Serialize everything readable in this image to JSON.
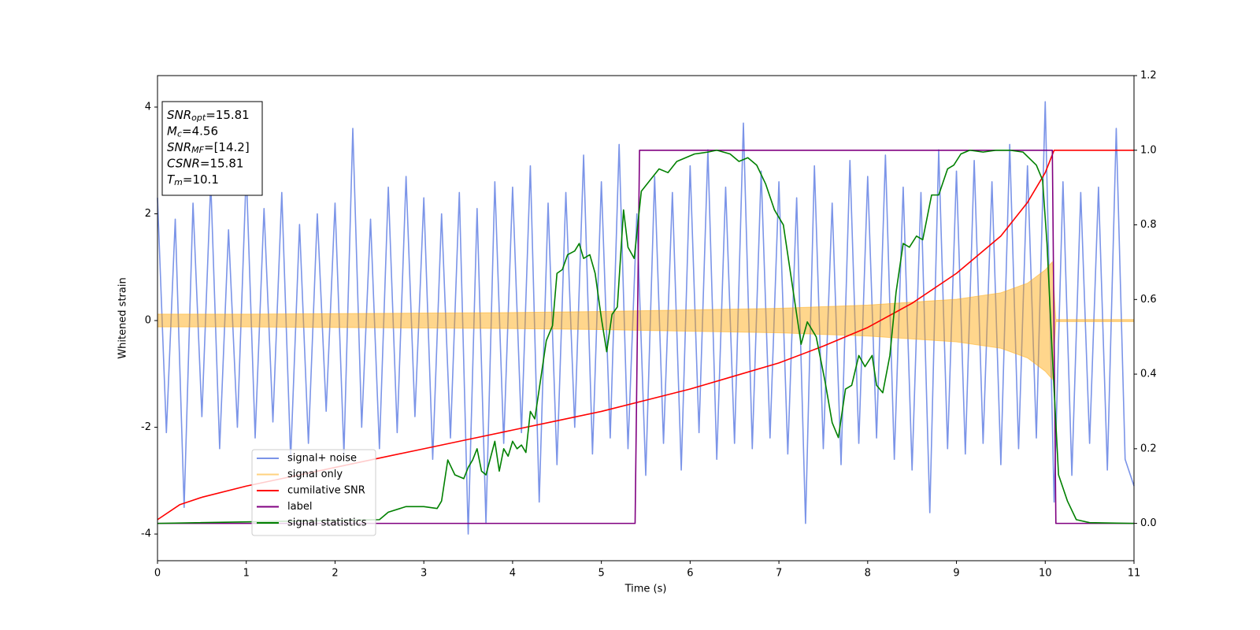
{
  "chart_data": {
    "type": "line",
    "xlabel": "Time (s)",
    "ylabel": "Whitened strain",
    "xlim": [
      0,
      11
    ],
    "ylim": [
      -4.5,
      4.59
    ],
    "y2lim": [
      -0.1,
      1.2
    ],
    "xticks": [
      0,
      1,
      2,
      3,
      4,
      5,
      6,
      7,
      8,
      9,
      10,
      11
    ],
    "yticks": [
      -4,
      -2,
      0,
      2,
      4
    ],
    "y2ticks": [
      {
        "value": 0,
        "label": "0.0"
      },
      {
        "value": 0.2,
        "label": "0.2"
      },
      {
        "value": 0.4,
        "label": "0.4"
      },
      {
        "value": 0.6,
        "label": "0.6"
      },
      {
        "value": 0.8,
        "label": "0.8"
      },
      {
        "value": 1,
        "label": "1.0"
      },
      {
        "value": 1.2,
        "label": "1.2"
      }
    ],
    "legend": "lower left",
    "annotations": [
      {
        "symbol": "SNR",
        "subscript": "opt",
        "text": "=15.81"
      },
      {
        "symbol": "M",
        "subscript": "c",
        "text": "=4.56"
      },
      {
        "symbol": "SNR",
        "subscript": "MF",
        "text": "=[14.2]"
      },
      {
        "symbol": "CSNR",
        "text": "=15.81"
      },
      {
        "symbol": "T",
        "subscript": "m",
        "text": "=10.1"
      }
    ],
    "series": [
      {
        "name": "signal+ noise",
        "color": "#7b94e8",
        "x": [
          0,
          0.1,
          0.2,
          0.3,
          0.4,
          0.5,
          0.6,
          0.7,
          0.8,
          0.9,
          1,
          1.1,
          1.2,
          1.3,
          1.4,
          1.5,
          1.6,
          1.7,
          1.8,
          1.9,
          2,
          2.1,
          2.2,
          2.3,
          2.4,
          2.5,
          2.6,
          2.7,
          2.8,
          2.9,
          3,
          3.1,
          3.2,
          3.3,
          3.4,
          3.5,
          3.6,
          3.7,
          3.8,
          3.9,
          4,
          4.1,
          4.2,
          4.3,
          4.4,
          4.5,
          4.6,
          4.7,
          4.8,
          4.9,
          5,
          5.1,
          5.2,
          5.3,
          5.4,
          5.5,
          5.6,
          5.7,
          5.8,
          5.9,
          6,
          6.1,
          6.2,
          6.3,
          6.4,
          6.5,
          6.6,
          6.7,
          6.8,
          6.9,
          7,
          7.1,
          7.2,
          7.3,
          7.4,
          7.5,
          7.6,
          7.7,
          7.8,
          7.9,
          8,
          8.1,
          8.2,
          8.3,
          8.4,
          8.5,
          8.6,
          8.7,
          8.8,
          8.9,
          9,
          9.1,
          9.2,
          9.3,
          9.4,
          9.5,
          9.6,
          9.7,
          9.8,
          9.9,
          10,
          10.1,
          10.2,
          10.3,
          10.4,
          10.5,
          10.6,
          10.7,
          10.8,
          10.9,
          11
        ],
        "values": [
          2.3,
          -2.1,
          1.9,
          -3.5,
          2.2,
          -1.8,
          2.6,
          -2.4,
          1.7,
          -2.0,
          2.8,
          -2.2,
          2.1,
          -1.9,
          2.4,
          -2.6,
          1.8,
          -2.3,
          2.0,
          -1.7,
          2.2,
          -2.5,
          3.6,
          -2.0,
          1.9,
          -2.4,
          2.5,
          -2.1,
          2.7,
          -1.8,
          2.3,
          -2.6,
          2.0,
          -2.2,
          2.4,
          -4.0,
          2.1,
          -3.8,
          2.6,
          -2.3,
          2.5,
          -2.1,
          2.9,
          -3.4,
          2.2,
          -2.7,
          2.4,
          -2.0,
          3.1,
          -2.5,
          2.6,
          -2.2,
          3.3,
          -2.4,
          2.0,
          -2.9,
          2.7,
          -2.3,
          2.4,
          -2.8,
          2.9,
          -2.1,
          3.2,
          -2.6,
          2.5,
          -2.3,
          3.7,
          -2.4,
          2.8,
          -2.2,
          2.6,
          -2.5,
          2.3,
          -3.8,
          2.9,
          -2.4,
          2.2,
          -2.7,
          3.0,
          -2.3,
          2.7,
          -2.2,
          3.1,
          -2.6,
          2.5,
          -2.8,
          2.4,
          -3.6,
          3.2,
          -2.4,
          2.8,
          -2.5,
          3.0,
          -2.3,
          2.6,
          -2.7,
          3.3,
          -2.4,
          2.9,
          -2.2,
          4.1,
          -3.4,
          2.6,
          -2.9,
          2.4,
          -2.3,
          2.5,
          -2.8,
          3.6,
          -2.6,
          -3.1
        ]
      },
      {
        "name": "signal only",
        "color": "#ffa500",
        "x": [
          0,
          1,
          2,
          3,
          4,
          5,
          6,
          7,
          8,
          9,
          9.5,
          9.8,
          10,
          10.08,
          10.12,
          11
        ],
        "values": [
          0.12,
          0.12,
          0.13,
          0.14,
          0.15,
          0.17,
          0.2,
          0.23,
          0.29,
          0.4,
          0.52,
          0.7,
          0.95,
          1.1,
          0.02,
          0.02
        ],
        "lower": [
          -0.12,
          -0.12,
          -0.13,
          -0.14,
          -0.15,
          -0.17,
          -0.2,
          -0.23,
          -0.29,
          -0.4,
          -0.52,
          -0.7,
          -0.95,
          -1.1,
          -0.02,
          -0.02
        ]
      },
      {
        "name": "cumilative SNR",
        "color": "#ff0000",
        "axis": "y2",
        "x": [
          0,
          0.25,
          0.5,
          1,
          1.5,
          2,
          2.5,
          3,
          3.5,
          4,
          4.5,
          5,
          5.5,
          6,
          6.5,
          7,
          7.5,
          8,
          8.5,
          9,
          9.5,
          9.8,
          10,
          10.1,
          10.5,
          11
        ],
        "values": [
          0.01,
          0.05,
          0.07,
          0.1,
          0.125,
          0.15,
          0.175,
          0.2,
          0.225,
          0.25,
          0.275,
          0.3,
          0.33,
          0.36,
          0.395,
          0.43,
          0.475,
          0.525,
          0.59,
          0.67,
          0.77,
          0.86,
          0.94,
          1,
          1,
          1
        ]
      },
      {
        "name": "label",
        "color": "#800080",
        "axis": "y2",
        "x": [
          0,
          5.38,
          5.43,
          10.08,
          10.12,
          11
        ],
        "values": [
          0,
          0,
          1,
          1,
          0,
          0
        ]
      },
      {
        "name": "signal statistics",
        "color": "#008000",
        "axis": "y2",
        "x": [
          0,
          2.5,
          2.6,
          2.8,
          3.0,
          3.15,
          3.2,
          3.27,
          3.35,
          3.45,
          3.5,
          3.55,
          3.6,
          3.65,
          3.7,
          3.8,
          3.85,
          3.9,
          3.95,
          4.0,
          4.05,
          4.1,
          4.15,
          4.2,
          4.25,
          4.3,
          4.38,
          4.45,
          4.5,
          4.56,
          4.62,
          4.7,
          4.75,
          4.8,
          4.87,
          4.93,
          5.0,
          5.06,
          5.12,
          5.18,
          5.25,
          5.3,
          5.37,
          5.45,
          5.55,
          5.65,
          5.75,
          5.85,
          5.95,
          6.05,
          6.2,
          6.3,
          6.45,
          6.55,
          6.65,
          6.75,
          6.85,
          6.95,
          7.05,
          7.15,
          7.25,
          7.32,
          7.42,
          7.52,
          7.6,
          7.67,
          7.75,
          7.82,
          7.9,
          7.97,
          8.05,
          8.1,
          8.17,
          8.25,
          8.32,
          8.4,
          8.47,
          8.55,
          8.62,
          8.72,
          8.8,
          8.9,
          8.97,
          9.05,
          9.15,
          9.3,
          9.45,
          9.6,
          9.75,
          9.9,
          9.97,
          10.02,
          10.08,
          10.15,
          10.25,
          10.35,
          10.5,
          11
        ],
        "values": [
          0,
          0.01,
          0.03,
          0.045,
          0.045,
          0.04,
          0.06,
          0.17,
          0.13,
          0.12,
          0.15,
          0.17,
          0.2,
          0.14,
          0.13,
          0.22,
          0.14,
          0.2,
          0.18,
          0.22,
          0.2,
          0.21,
          0.19,
          0.3,
          0.28,
          0.36,
          0.49,
          0.53,
          0.67,
          0.68,
          0.72,
          0.73,
          0.75,
          0.71,
          0.72,
          0.67,
          0.55,
          0.46,
          0.56,
          0.58,
          0.84,
          0.74,
          0.71,
          0.89,
          0.92,
          0.95,
          0.94,
          0.97,
          0.98,
          0.99,
          0.995,
          1,
          0.99,
          0.97,
          0.98,
          0.96,
          0.91,
          0.84,
          0.8,
          0.64,
          0.48,
          0.54,
          0.5,
          0.38,
          0.27,
          0.23,
          0.36,
          0.37,
          0.45,
          0.42,
          0.45,
          0.37,
          0.35,
          0.45,
          0.62,
          0.75,
          0.74,
          0.77,
          0.76,
          0.88,
          0.88,
          0.95,
          0.96,
          0.99,
          1,
          0.995,
          1,
          1,
          0.995,
          0.96,
          0.92,
          0.75,
          0.45,
          0.13,
          0.06,
          0.01,
          0.002,
          0
        ]
      }
    ]
  }
}
